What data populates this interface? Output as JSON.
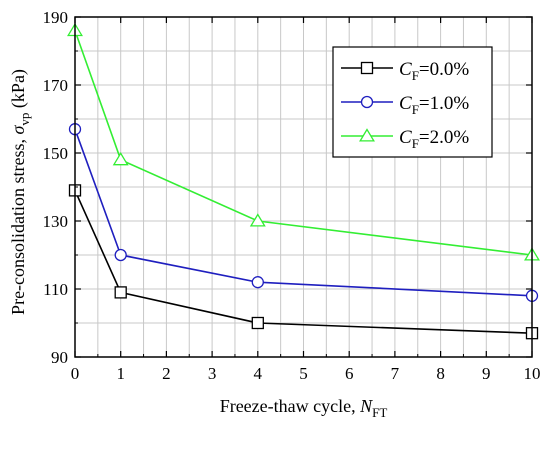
{
  "chart_data": {
    "type": "line",
    "title": "",
    "xlabel": {
      "text": "Freeze-thaw cycle, ",
      "var": "N",
      "sub": "FT"
    },
    "ylabel": {
      "text": "Pre-consolidation stress, ",
      "var": "σ",
      "sub": "vp",
      "unit": " (kPa)"
    },
    "xlim": [
      0,
      10
    ],
    "ylim": [
      90,
      190
    ],
    "xticks": [
      0,
      1,
      2,
      3,
      4,
      5,
      6,
      7,
      8,
      9,
      10
    ],
    "yticks": [
      90,
      110,
      130,
      150,
      170,
      190
    ],
    "grid": true,
    "legend_position": "top-right",
    "series": [
      {
        "name": {
          "var": "C",
          "sub": "F",
          "rest": "=0.0%"
        },
        "color": "#000000",
        "marker": "square",
        "x": [
          0,
          1,
          4,
          10
        ],
        "y": [
          139,
          109,
          100,
          97
        ]
      },
      {
        "name": {
          "var": "C",
          "sub": "F",
          "rest": "=1.0%"
        },
        "color": "#1f1fbf",
        "marker": "circle",
        "x": [
          0,
          1,
          4,
          10
        ],
        "y": [
          157,
          120,
          112,
          108
        ]
      },
      {
        "name": {
          "var": "C",
          "sub": "F",
          "rest": "=2.0%"
        },
        "color": "#33ee33",
        "marker": "triangle",
        "x": [
          0,
          1,
          4,
          10
        ],
        "y": [
          186,
          148,
          130,
          120
        ]
      }
    ]
  }
}
